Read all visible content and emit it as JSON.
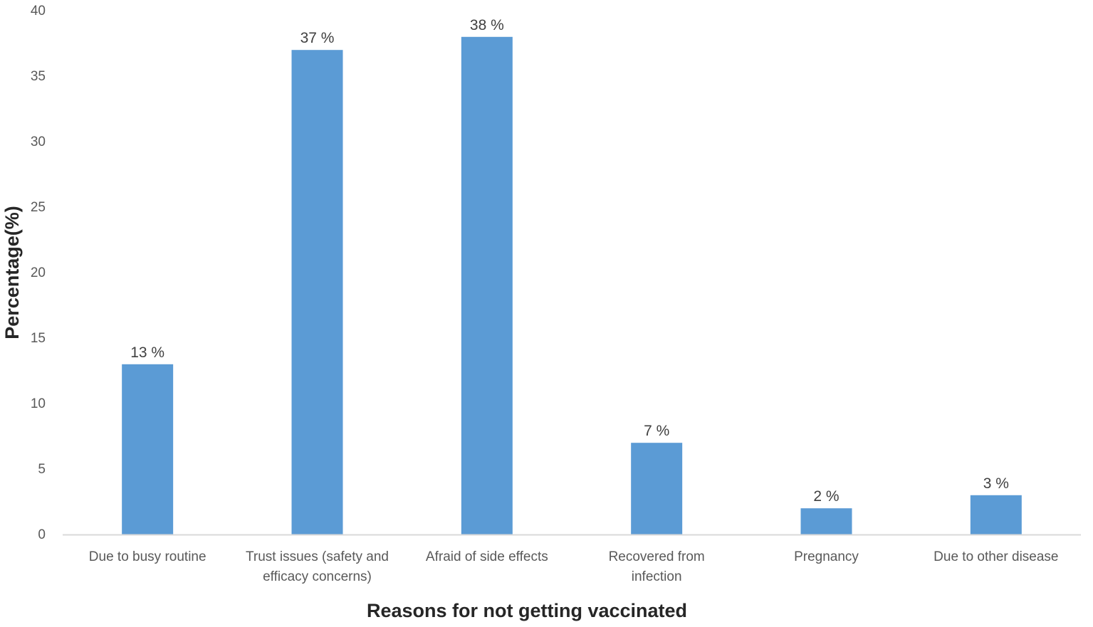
{
  "chart_data": {
    "type": "bar",
    "title": "",
    "xlabel": "Reasons for not getting vaccinated",
    "ylabel": "Percentage(%)",
    "ylim": [
      0,
      40
    ],
    "yticks": [
      "0",
      "5",
      "10",
      "15",
      "20",
      "25",
      "30",
      "35",
      "40"
    ],
    "grid": false,
    "categories": [
      [
        "Due to busy routine"
      ],
      [
        "Trust issues (safety and",
        "efficacy concerns)"
      ],
      [
        "Afraid of side effects"
      ],
      [
        "Recovered from",
        "infection"
      ],
      [
        "Pregnancy"
      ],
      [
        "Due to other disease"
      ]
    ],
    "values": [
      13,
      37,
      38,
      7,
      2,
      3
    ],
    "data_labels": [
      "13 %",
      "37 %",
      "38 %",
      "7 %",
      "2 %",
      "3 %"
    ],
    "bar_color": "#5B9BD5",
    "axis_color": "#d9d9d9"
  }
}
